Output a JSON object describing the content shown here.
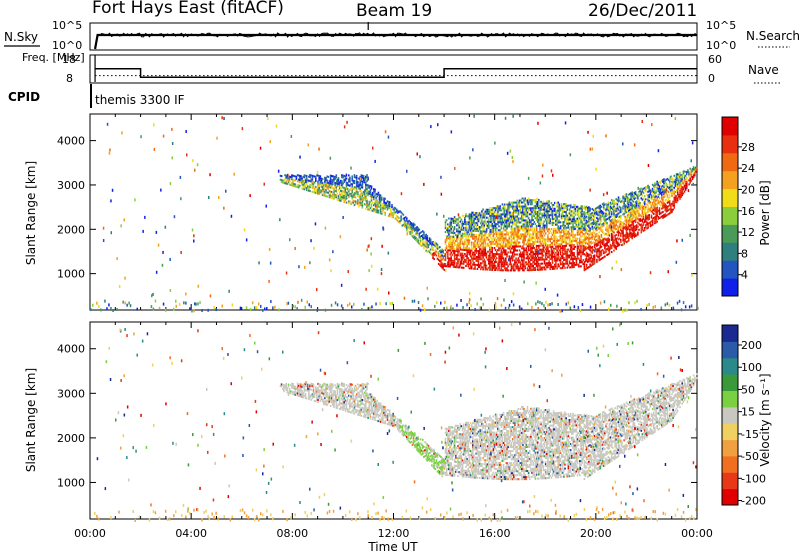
{
  "chart_data": [
    {
      "type": "line",
      "header": {
        "station": "Fort Hays East (fitACF)",
        "beam": "Beam 19",
        "date": "26/Dec/2011"
      },
      "left_label": "N.Sky",
      "right_label": "N.Search",
      "left_ticks": [
        "10^5",
        "10^0"
      ],
      "right_ticks": [
        "10^5",
        "10^0"
      ],
      "series": [
        {
          "name": "N.Sky",
          "x": [
            0.2,
            0.3,
            8,
            16,
            24
          ],
          "y": [
            0,
            5.0,
            5.0,
            5.0,
            5.0
          ]
        }
      ]
    },
    {
      "type": "line",
      "ylabel": "Freq. [MHz]",
      "y_ticks": [
        18,
        8
      ],
      "right_ylabel": "Nave",
      "right_ticks": [
        60,
        0
      ],
      "series": [
        {
          "name": "Freq.",
          "x": [
            0.2,
            2,
            2,
            14,
            14,
            24
          ],
          "y": [
            15,
            15,
            10.5,
            10.5,
            15,
            15
          ]
        },
        {
          "name": "Nave",
          "x": [
            0.2,
            24
          ],
          "y": [
            20,
            20
          ]
        }
      ]
    },
    {
      "type": "table",
      "label": "CPID",
      "text": "themis 3300 IF"
    },
    {
      "type": "heatmap",
      "ylabel": "Slant Range [km]",
      "y_ticks": [
        1000,
        2000,
        3000,
        4000
      ],
      "ylim": [
        180,
        4600
      ],
      "colorbar_label": "Power [dB]",
      "colorbar_ticks": [
        "4",
        "8",
        "12",
        "16",
        "20",
        "24",
        "28"
      ],
      "colorbar_colors": [
        "#1020e8",
        "#2255c0",
        "#2f7f7f",
        "#4a9a5a",
        "#8ccd3c",
        "#f0dc18",
        "#f4a020",
        "#f06a14",
        "#e83010",
        "#e00000"
      ]
    },
    {
      "type": "heatmap",
      "ylabel": "Slant Range [km]",
      "y_ticks": [
        1000,
        2000,
        3000,
        4000
      ],
      "ylim": [
        180,
        4600
      ],
      "colorbar_label": "Velocity [m s⁻¹]",
      "colorbar_ticks": [
        "200",
        "100",
        "50",
        "15",
        "-15",
        "-50",
        "-100",
        "-200"
      ],
      "colorbar_colors": [
        "#1a2a90",
        "#2a5aa8",
        "#2a8a8a",
        "#3a9a3a",
        "#7ad040",
        "#c8c8c0",
        "#f0d060",
        "#f0a040",
        "#f07020",
        "#e83818",
        "#e00000"
      ],
      "x_ticks": [
        "00:00",
        "04:00",
        "08:00",
        "12:00",
        "16:00",
        "20:00",
        "00:00"
      ],
      "xlabel": "Time UT"
    }
  ]
}
